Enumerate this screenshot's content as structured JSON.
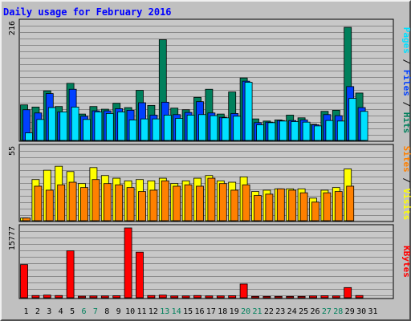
{
  "title": "Daily usage for February 2016",
  "colors": {
    "background": "#c0c0c0",
    "plot_bg": "#c8c8c8",
    "gridline": "#8a8a8a",
    "hits": "#00805c",
    "files": "#0040ff",
    "pages": "#00e0ff",
    "visits": "#ffff00",
    "sites": "#ff8000",
    "kbytes": "#ff0000",
    "weekday_label": "#000000",
    "weekend_label": "#00805c",
    "separator": "#000000",
    "title": "#0000ff"
  },
  "chart_data": [
    {
      "type": "bar",
      "panel": "hits-files-pages",
      "ymax_label": "216",
      "ylim": [
        0,
        216
      ],
      "right_legend": [
        "Pages",
        "Files",
        "Hits"
      ],
      "series": [
        {
          "name": "Hits",
          "values": [
            66,
            62,
            92,
            63,
            106,
            49,
            63,
            58,
            69,
            61,
            93,
            65,
            187,
            60,
            57,
            80,
            95,
            49,
            90,
            116,
            40,
            36,
            38,
            47,
            42,
            30,
            54,
            56,
            210,
            88,
            0
          ]
        },
        {
          "name": "Files",
          "values": [
            57,
            51,
            87,
            53,
            95,
            45,
            55,
            55,
            59,
            56,
            70,
            47,
            71,
            48,
            52,
            72,
            51,
            43,
            50,
            110,
            33,
            34,
            37,
            37,
            38,
            29,
            48,
            46,
            100,
            61,
            0
          ]
        },
        {
          "name": "Pages",
          "values": [
            14,
            39,
            61,
            53,
            62,
            39,
            53,
            50,
            53,
            38,
            40,
            40,
            47,
            41,
            47,
            48,
            46,
            42,
            45,
            108,
            29,
            33,
            36,
            35,
            34,
            27,
            37,
            36,
            78,
            54,
            0
          ]
        }
      ]
    },
    {
      "type": "bar",
      "panel": "visits-sites",
      "ymax_label": "55",
      "ylim": [
        0,
        55
      ],
      "right_legend": [
        "Sites",
        "Visits"
      ],
      "series": [
        {
          "name": "Visits",
          "values": [
            2,
            31,
            38,
            41,
            37,
            28,
            40,
            34,
            32,
            30,
            31,
            30,
            32,
            28,
            30,
            32,
            34,
            30,
            29,
            33,
            22,
            23,
            24,
            24,
            24,
            17,
            23,
            25,
            39,
            0,
            0
          ]
        },
        {
          "name": "Sites",
          "values": [
            2,
            26,
            23,
            27,
            29,
            25,
            31,
            28,
            27,
            25,
            22,
            23,
            30,
            26,
            27,
            26,
            32,
            28,
            23,
            27,
            19,
            20,
            24,
            23,
            21,
            14,
            21,
            22,
            26,
            0,
            0
          ]
        }
      ]
    },
    {
      "type": "bar",
      "panel": "kbytes",
      "ymax_label": "15777",
      "ylim": [
        0,
        15777
      ],
      "right_legend": [
        "KBytes"
      ],
      "series": [
        {
          "name": "KBytes",
          "values": [
            7500,
            500,
            600,
            500,
            10600,
            350,
            400,
            400,
            450,
            15777,
            10300,
            500,
            600,
            400,
            400,
            500,
            400,
            400,
            450,
            3100,
            300,
            300,
            300,
            300,
            300,
            400,
            450,
            400,
            2300,
            500,
            0
          ]
        }
      ]
    }
  ],
  "x_axis": {
    "days": [
      "1",
      "2",
      "3",
      "4",
      "5",
      "6",
      "7",
      "8",
      "9",
      "10",
      "11",
      "12",
      "13",
      "14",
      "15",
      "16",
      "17",
      "18",
      "19",
      "20",
      "21",
      "22",
      "23",
      "24",
      "25",
      "26",
      "27",
      "28",
      "29",
      "30",
      "31"
    ],
    "weekend_days": [
      "6",
      "7",
      "13",
      "14",
      "20",
      "21",
      "27",
      "28"
    ]
  }
}
